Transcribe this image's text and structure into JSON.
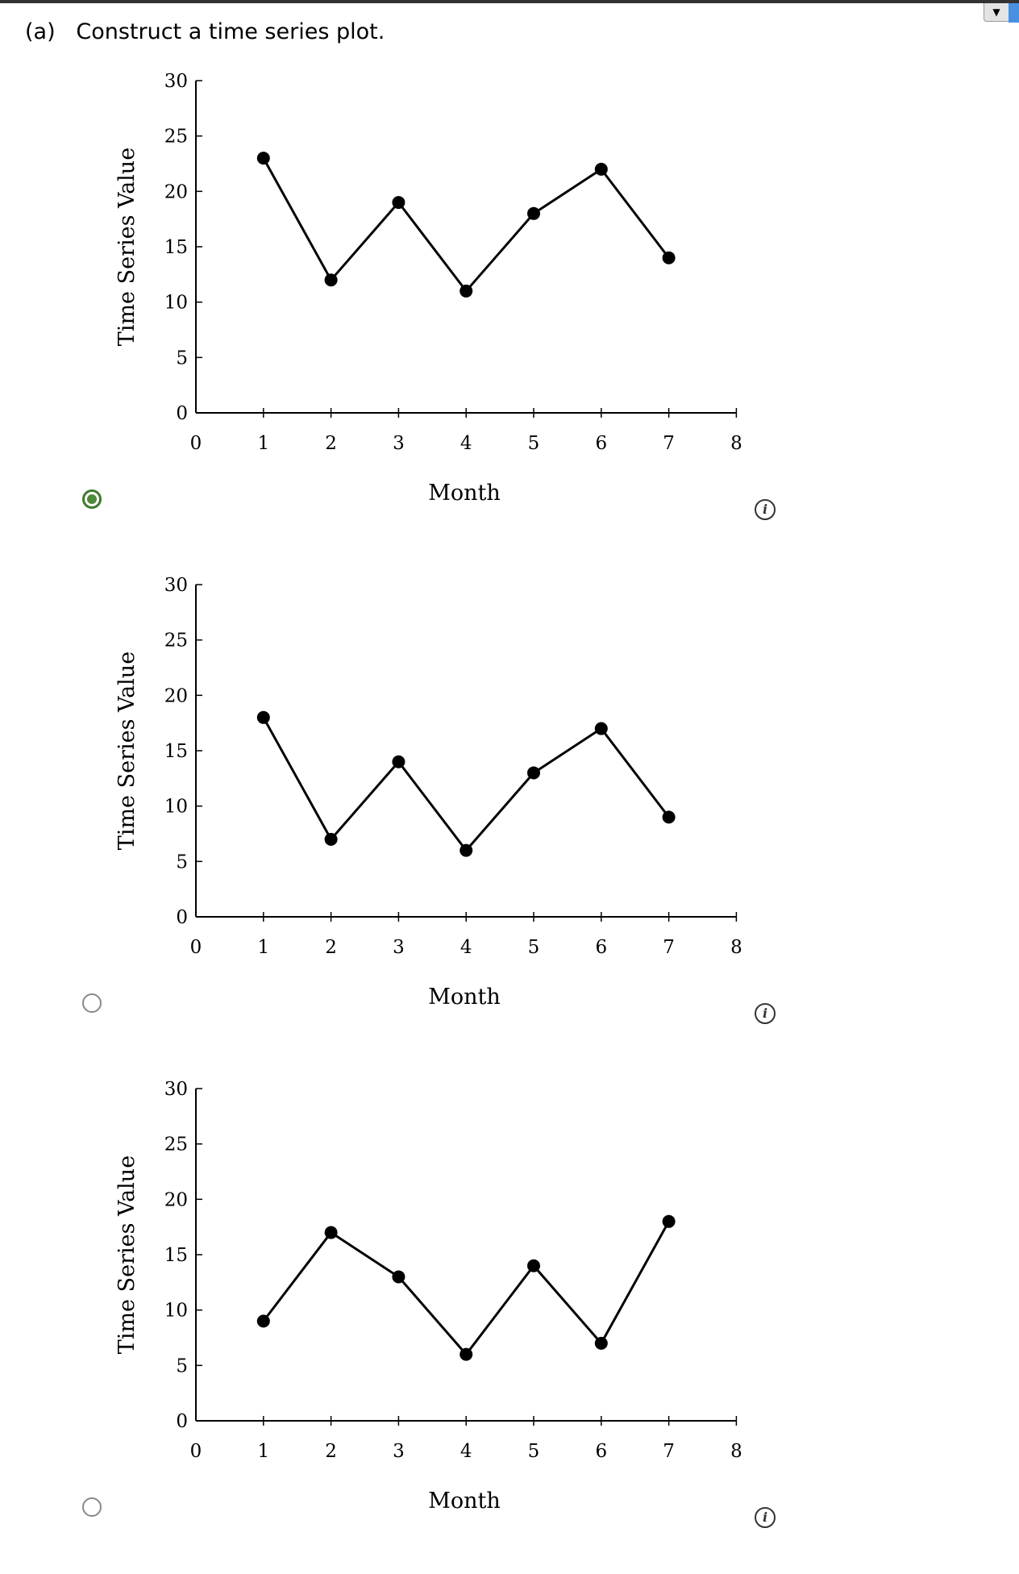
{
  "header": {
    "title": "(a)   Construct a time series plot.",
    "menu_icon": "dropdown-arrow-icon"
  },
  "colors": {
    "selected": "#4f8a3a",
    "line": "#000000"
  },
  "chart_data": [
    {
      "type": "line",
      "xlabel": "Month",
      "ylabel": "Time Series Value",
      "xlim": [
        0,
        8
      ],
      "ylim": [
        0,
        30
      ],
      "xticks": [
        "0",
        "1",
        "2",
        "3",
        "4",
        "5",
        "6",
        "7",
        "8"
      ],
      "yticks": [
        "0",
        "5",
        "10",
        "15",
        "20",
        "25",
        "30"
      ],
      "x": [
        1,
        2,
        3,
        4,
        5,
        6,
        7
      ],
      "values": [
        23,
        12,
        19,
        11,
        18,
        22,
        14
      ],
      "selected": true
    },
    {
      "type": "line",
      "xlabel": "Month",
      "ylabel": "Time Series Value",
      "xlim": [
        0,
        8
      ],
      "ylim": [
        0,
        30
      ],
      "xticks": [
        "0",
        "1",
        "2",
        "3",
        "4",
        "5",
        "6",
        "7",
        "8"
      ],
      "yticks": [
        "0",
        "5",
        "10",
        "15",
        "20",
        "25",
        "30"
      ],
      "x": [
        1,
        2,
        3,
        4,
        5,
        6,
        7
      ],
      "values": [
        18,
        7,
        14,
        6,
        13,
        17,
        9
      ],
      "selected": false
    },
    {
      "type": "line",
      "xlabel": "Month",
      "ylabel": "Time Series Value",
      "xlim": [
        0,
        8
      ],
      "ylim": [
        0,
        30
      ],
      "xticks": [
        "0",
        "1",
        "2",
        "3",
        "4",
        "5",
        "6",
        "7",
        "8"
      ],
      "yticks": [
        "0",
        "5",
        "10",
        "15",
        "20",
        "25",
        "30"
      ],
      "x": [
        1,
        2,
        3,
        4,
        5,
        6,
        7
      ],
      "values": [
        9,
        17,
        13,
        6,
        14,
        7,
        18
      ],
      "selected": false
    }
  ],
  "info_label": "i"
}
